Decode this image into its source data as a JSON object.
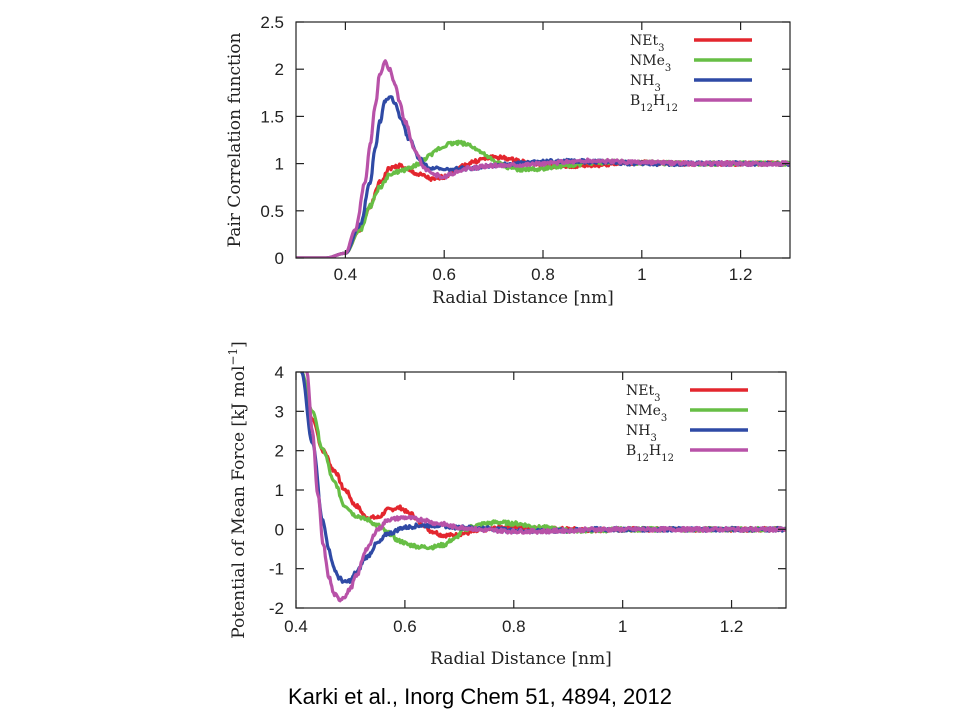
{
  "chart_data": [
    {
      "type": "line",
      "xlabel": "Radial Distance [nm]",
      "ylabel": "Pair Correlation function",
      "xlim": [
        0.3,
        1.3
      ],
      "ylim": [
        0,
        2.5
      ],
      "xticks": [
        0.4,
        0.6,
        0.8,
        1,
        1.2
      ],
      "yticks": [
        0,
        0.5,
        1,
        1.5,
        2,
        2.5
      ],
      "xtick_labels": [
        "0.4",
        "0.6",
        "0.8",
        "1",
        "1.2"
      ],
      "ytick_labels": [
        "0",
        "0.5",
        "1",
        "1.5",
        "2",
        "2.5"
      ],
      "legend_position": "top-right",
      "series": [
        {
          "name": "NEt3",
          "base": "NEt",
          "sub": "3",
          "color": "#e3262e",
          "x": [
            0.3,
            0.36,
            0.4,
            0.43,
            0.45,
            0.47,
            0.49,
            0.51,
            0.53,
            0.55,
            0.58,
            0.6,
            0.62,
            0.64,
            0.66,
            0.68,
            0.7,
            0.72,
            0.74,
            0.76,
            0.78,
            0.8,
            0.85,
            0.9,
            0.95,
            1.0,
            1.1,
            1.2,
            1.3
          ],
          "y": [
            0,
            0,
            0.05,
            0.3,
            0.55,
            0.8,
            0.95,
            0.98,
            0.92,
            0.88,
            0.83,
            0.86,
            0.92,
            0.98,
            1.02,
            1.05,
            1.07,
            1.06,
            1.04,
            1.02,
            1.0,
            0.98,
            0.97,
            0.98,
            1.0,
            1.01,
            1.0,
            1.0,
            1.0
          ]
        },
        {
          "name": "NMe3",
          "base": "NMe",
          "sub": "3",
          "color": "#67be45",
          "x": [
            0.3,
            0.36,
            0.4,
            0.43,
            0.45,
            0.47,
            0.49,
            0.51,
            0.53,
            0.55,
            0.57,
            0.59,
            0.61,
            0.63,
            0.65,
            0.67,
            0.69,
            0.71,
            0.73,
            0.75,
            0.78,
            0.8,
            0.85,
            0.9,
            0.95,
            1.0,
            1.1,
            1.2,
            1.3
          ],
          "y": [
            0,
            0,
            0.05,
            0.3,
            0.55,
            0.75,
            0.88,
            0.92,
            0.95,
            1.0,
            1.08,
            1.16,
            1.21,
            1.22,
            1.2,
            1.14,
            1.06,
            1.0,
            0.96,
            0.94,
            0.94,
            0.95,
            0.98,
            1.01,
            1.02,
            1.01,
            1.0,
            1.0,
            1.0
          ]
        },
        {
          "name": "NH3",
          "base": "NH",
          "sub": "3",
          "color": "#2f4aa5",
          "x": [
            0.3,
            0.36,
            0.4,
            0.43,
            0.45,
            0.46,
            0.47,
            0.48,
            0.49,
            0.5,
            0.51,
            0.53,
            0.55,
            0.57,
            0.6,
            0.65,
            0.7,
            0.75,
            0.8,
            0.85,
            0.9,
            0.95,
            1.0,
            1.1,
            1.2,
            1.3
          ],
          "y": [
            0,
            0,
            0.05,
            0.35,
            0.8,
            1.15,
            1.45,
            1.65,
            1.72,
            1.65,
            1.5,
            1.25,
            1.05,
            0.96,
            0.93,
            0.95,
            0.98,
            1.0,
            1.02,
            1.03,
            1.02,
            1.01,
            1.0,
            1.0,
            1.0,
            1.0
          ]
        },
        {
          "name": "B12H12",
          "base": "B",
          "sub": "12",
          "base2": "H",
          "sub2": "12",
          "color": "#b852a8",
          "x": [
            0.3,
            0.36,
            0.4,
            0.42,
            0.44,
            0.45,
            0.46,
            0.47,
            0.48,
            0.49,
            0.5,
            0.51,
            0.52,
            0.54,
            0.56,
            0.58,
            0.6,
            0.62,
            0.65,
            0.7,
            0.75,
            0.8,
            0.85,
            0.9,
            0.95,
            1.0,
            1.1,
            1.2,
            1.3
          ],
          "y": [
            0,
            0,
            0.05,
            0.3,
            0.8,
            1.2,
            1.6,
            1.95,
            2.07,
            2.0,
            1.85,
            1.65,
            1.45,
            1.15,
            0.95,
            0.88,
            0.86,
            0.9,
            0.95,
            0.98,
            0.99,
            1.0,
            1.02,
            1.03,
            1.02,
            1.01,
            1.0,
            1.0,
            1.0
          ]
        }
      ]
    },
    {
      "type": "line",
      "xlabel": "Radial Distance [nm]",
      "ylabel": "Potential of Mean Force [kJ mol",
      "ylabel_sup": "−1",
      "ylabel_end": "]",
      "xlim": [
        0.4,
        1.3
      ],
      "ylim": [
        -2,
        4
      ],
      "xticks": [
        0.4,
        0.6,
        0.8,
        1,
        1.2
      ],
      "yticks": [
        -2,
        -1,
        0,
        1,
        2,
        3,
        4
      ],
      "xtick_labels": [
        "0.4",
        "0.6",
        "0.8",
        "1",
        "1.2"
      ],
      "ytick_labels": [
        "-2",
        "-1",
        "0",
        "1",
        "2",
        "3",
        "4"
      ],
      "legend_position": "top-right",
      "series": [
        {
          "name": "NEt3",
          "base": "NEt",
          "sub": "3",
          "color": "#e3262e",
          "x": [
            0.41,
            0.43,
            0.45,
            0.47,
            0.49,
            0.51,
            0.53,
            0.55,
            0.57,
            0.59,
            0.61,
            0.63,
            0.65,
            0.67,
            0.69,
            0.71,
            0.73,
            0.75,
            0.78,
            0.8,
            0.85,
            0.9,
            0.95,
            1.0,
            1.1,
            1.2,
            1.3
          ],
          "y": [
            4,
            2.8,
            2.0,
            1.5,
            1.0,
            0.6,
            0.3,
            0.3,
            0.5,
            0.55,
            0.4,
            0.15,
            -0.05,
            -0.15,
            -0.15,
            -0.1,
            -0.05,
            0,
            0.05,
            0.05,
            0.02,
            0,
            -0.02,
            0,
            0,
            0,
            0
          ]
        },
        {
          "name": "NMe3",
          "base": "NMe",
          "sub": "3",
          "color": "#67be45",
          "x": [
            0.41,
            0.43,
            0.45,
            0.47,
            0.49,
            0.51,
            0.53,
            0.55,
            0.57,
            0.59,
            0.61,
            0.63,
            0.65,
            0.67,
            0.69,
            0.71,
            0.73,
            0.75,
            0.77,
            0.8,
            0.85,
            0.9,
            0.95,
            1.0,
            1.1,
            1.2,
            1.3
          ],
          "y": [
            4,
            3.0,
            2.0,
            1.2,
            0.6,
            0.35,
            0.25,
            0.1,
            -0.1,
            -0.3,
            -0.4,
            -0.45,
            -0.45,
            -0.4,
            -0.25,
            0,
            0.1,
            0.15,
            0.18,
            0.15,
            0.05,
            -0.03,
            -0.03,
            0,
            0,
            0,
            0
          ]
        },
        {
          "name": "NH3",
          "base": "NH",
          "sub": "3",
          "color": "#2f4aa5",
          "x": [
            0.41,
            0.43,
            0.45,
            0.46,
            0.47,
            0.48,
            0.49,
            0.5,
            0.51,
            0.53,
            0.55,
            0.57,
            0.6,
            0.63,
            0.66,
            0.7,
            0.75,
            0.8,
            0.85,
            0.9,
            0.95,
            1.0,
            1.1,
            1.2,
            1.3
          ],
          "y": [
            4,
            2.2,
            0.2,
            -0.5,
            -1.0,
            -1.25,
            -1.35,
            -1.3,
            -1.1,
            -0.7,
            -0.35,
            -0.1,
            0.05,
            0.1,
            0.1,
            0.05,
            0.02,
            -0.03,
            -0.05,
            -0.03,
            0,
            0,
            0,
            0,
            0
          ]
        },
        {
          "name": "B12H12",
          "base": "B",
          "sub": "12",
          "base2": "H",
          "sub2": "12",
          "color": "#b852a8",
          "x": [
            0.42,
            0.43,
            0.44,
            0.45,
            0.46,
            0.47,
            0.48,
            0.49,
            0.5,
            0.51,
            0.53,
            0.55,
            0.57,
            0.6,
            0.63,
            0.66,
            0.7,
            0.75,
            0.8,
            0.85,
            0.9,
            0.95,
            1.0,
            1.1,
            1.2,
            1.3
          ],
          "y": [
            4,
            2.5,
            0.9,
            -0.4,
            -1.2,
            -1.65,
            -1.78,
            -1.7,
            -1.5,
            -1.2,
            -0.5,
            0,
            0.25,
            0.3,
            0.25,
            0.15,
            0.05,
            -0.02,
            -0.05,
            -0.05,
            -0.03,
            0,
            0,
            0,
            0,
            0
          ]
        }
      ]
    }
  ],
  "citation": "Karki et al., Inorg Chem 51, 4894, 2012"
}
